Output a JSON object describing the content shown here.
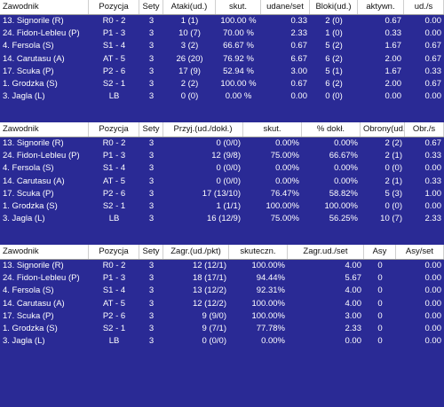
{
  "tables": [
    {
      "headers": [
        "Zawodnik",
        "Pozycja",
        "Sety",
        "Ataki(ud.)",
        "skut.",
        "udane/set",
        "Bloki(ud.)",
        "aktywn.",
        "ud./s"
      ],
      "rows": [
        [
          "13. Signorile (R)",
          "R0 - 2",
          "3",
          "1 (1)",
          "100.00 %",
          "0.33",
          "2 (0)",
          "0.67",
          "0.00"
        ],
        [
          "24. Fidon-Lebleu (P)",
          "P1 - 3",
          "3",
          "10 (7)",
          "70.00 %",
          "2.33",
          "1 (0)",
          "0.33",
          "0.00"
        ],
        [
          "4. Fersola (S)",
          "S1 - 4",
          "3",
          "3 (2)",
          "66.67 %",
          "0.67",
          "5 (2)",
          "1.67",
          "0.67"
        ],
        [
          "14. Carutasu (A)",
          "AT - 5",
          "3",
          "26 (20)",
          "76.92 %",
          "6.67",
          "6 (2)",
          "2.00",
          "0.67"
        ],
        [
          "17. Scuka (P)",
          "P2 - 6",
          "3",
          "17 (9)",
          "52.94 %",
          "3.00",
          "5 (1)",
          "1.67",
          "0.33"
        ],
        [
          "1. Grodzka (S)",
          "S2 - 1",
          "3",
          "2 (2)",
          "100.00 %",
          "0.67",
          "6 (2)",
          "2.00",
          "0.67"
        ],
        [
          "3. Jagla (L)",
          "LB",
          "3",
          "0 (0)",
          "0.00 %",
          "0.00",
          "0 (0)",
          "0.00",
          "0.00"
        ]
      ]
    },
    {
      "headers": [
        "Zawodnik",
        "Pozycja",
        "Sety",
        "Przyj.(ud./dokł.)",
        "skut.",
        "% dokł.",
        "Obrony(ud.)",
        "Obr./s"
      ],
      "rows": [
        [
          "13. Signorile (R)",
          "R0 - 2",
          "3",
          "0 (0/0)",
          "0.00%",
          "0.00%",
          "2 (2)",
          "0.67"
        ],
        [
          "24. Fidon-Lebleu (P)",
          "P1 - 3",
          "3",
          "12 (9/8)",
          "75.00%",
          "66.67%",
          "2 (1)",
          "0.33"
        ],
        [
          "4. Fersola (S)",
          "S1 - 4",
          "3",
          "0 (0/0)",
          "0.00%",
          "0.00%",
          "0 (0)",
          "0.00"
        ],
        [
          "14. Carutasu (A)",
          "AT - 5",
          "3",
          "0 (0/0)",
          "0.00%",
          "0.00%",
          "2 (1)",
          "0.33"
        ],
        [
          "17. Scuka (P)",
          "P2 - 6",
          "3",
          "17 (13/10)",
          "76.47%",
          "58.82%",
          "5 (3)",
          "1.00"
        ],
        [
          "1. Grodzka (S)",
          "S2 - 1",
          "3",
          "1 (1/1)",
          "100.00%",
          "100.00%",
          "0 (0)",
          "0.00"
        ],
        [
          "3. Jagla (L)",
          "LB",
          "3",
          "16 (12/9)",
          "75.00%",
          "56.25%",
          "10 (7)",
          "2.33"
        ]
      ]
    },
    {
      "headers": [
        "Zawodnik",
        "Pozycja",
        "Sety",
        "Zagr.(ud./pkt)",
        "skuteczn.",
        "Zagr.ud./set",
        "Asy",
        "Asy/set"
      ],
      "rows": [
        [
          "13. Signorile (R)",
          "R0 - 2",
          "3",
          "12 (12/1)",
          "100.00%",
          "4.00",
          "0",
          "0.00"
        ],
        [
          "24. Fidon-Lebleu (P)",
          "P1 - 3",
          "3",
          "18 (17/1)",
          "94.44%",
          "5.67",
          "0",
          "0.00"
        ],
        [
          "4. Fersola (S)",
          "S1 - 4",
          "3",
          "13 (12/2)",
          "92.31%",
          "4.00",
          "0",
          "0.00"
        ],
        [
          "14. Carutasu (A)",
          "AT - 5",
          "3",
          "12 (12/2)",
          "100.00%",
          "4.00",
          "0",
          "0.00"
        ],
        [
          "17. Scuka (P)",
          "P2 - 6",
          "3",
          "9 (9/0)",
          "100.00%",
          "3.00",
          "0",
          "0.00"
        ],
        [
          "1. Grodzka (S)",
          "S2 - 1",
          "3",
          "9 (7/1)",
          "77.78%",
          "2.33",
          "0",
          "0.00"
        ],
        [
          "3. Jagla (L)",
          "LB",
          "3",
          "0 (0/0)",
          "0.00%",
          "0.00",
          "0",
          "0.00"
        ]
      ]
    }
  ]
}
